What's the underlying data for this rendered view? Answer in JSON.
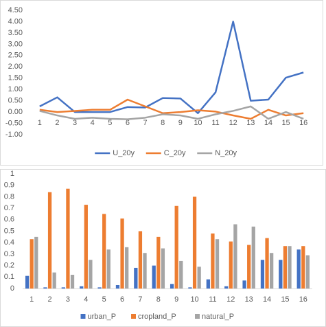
{
  "chart_data": [
    {
      "type": "line",
      "categories": [
        "1",
        "2",
        "3",
        "4",
        "5",
        "6",
        "7",
        "8",
        "9",
        "10",
        "11",
        "12",
        "13",
        "14",
        "15",
        "16"
      ],
      "series": [
        {
          "name": "U_20y",
          "color": "#4472c4",
          "values": [
            0.25,
            0.65,
            0.0,
            0.0,
            0.0,
            0.22,
            0.2,
            0.62,
            0.6,
            -0.05,
            0.87,
            4.0,
            0.5,
            0.55,
            1.52,
            1.75
          ]
        },
        {
          "name": "C_20y",
          "color": "#ed7d31",
          "values": [
            0.1,
            0.0,
            0.05,
            0.1,
            0.1,
            0.55,
            0.25,
            -0.05,
            0.0,
            0.08,
            0.02,
            -0.15,
            -0.3,
            0.1,
            -0.15,
            -0.05
          ]
        },
        {
          "name": "N_20y",
          "color": "#a5a5a5",
          "values": [
            0.05,
            -0.15,
            -0.3,
            -0.25,
            -0.3,
            -0.32,
            -0.25,
            -0.1,
            -0.15,
            -0.3,
            -0.1,
            0.05,
            0.25,
            -0.3,
            0.0,
            -0.3
          ]
        }
      ],
      "ylim": [
        -1,
        4.5
      ],
      "yticks": [
        {
          "value": 4.5,
          "label": "4.50"
        },
        {
          "value": 4,
          "label": "4.00"
        },
        {
          "value": 3.5,
          "label": "3.50"
        },
        {
          "value": 3,
          "label": "3.00"
        },
        {
          "value": 2.5,
          "label": "2.50"
        },
        {
          "value": 2,
          "label": "2.00"
        },
        {
          "value": 1.5,
          "label": "1.50"
        },
        {
          "value": 1,
          "label": "1.00"
        },
        {
          "value": 0.5,
          "label": "0.50"
        },
        {
          "value": 0,
          "label": "0.00"
        },
        {
          "value": -0.5,
          "label": "-0.50"
        },
        {
          "value": -1,
          "label": "-1.00"
        }
      ],
      "legend": "bottom"
    },
    {
      "type": "bar",
      "categories": [
        "1",
        "2",
        "3",
        "4",
        "5",
        "6",
        "7",
        "8",
        "9",
        "10",
        "11",
        "12",
        "13",
        "14",
        "15",
        "16"
      ],
      "series": [
        {
          "name": "urban_P",
          "color": "#4472c4",
          "values": [
            0.11,
            0.01,
            0.01,
            0.02,
            0.01,
            0.03,
            0.18,
            0.2,
            0.04,
            0.01,
            0.08,
            0.02,
            0.07,
            0.25,
            0.25,
            0.34
          ]
        },
        {
          "name": "cropland_P",
          "color": "#ed7d31",
          "values": [
            0.43,
            0.84,
            0.87,
            0.73,
            0.65,
            0.61,
            0.5,
            0.45,
            0.72,
            0.8,
            0.48,
            0.41,
            0.38,
            0.44,
            0.37,
            0.37
          ]
        },
        {
          "name": "natural_P",
          "color": "#a5a5a5",
          "values": [
            0.45,
            0.14,
            0.12,
            0.25,
            0.34,
            0.36,
            0.31,
            0.35,
            0.24,
            0.19,
            0.43,
            0.56,
            0.54,
            0.31,
            0.37,
            0.29
          ]
        }
      ],
      "ylim": [
        0,
        1
      ],
      "yticks": [
        0,
        0.1,
        0.2,
        0.3,
        0.4,
        0.5,
        0.6,
        0.7,
        0.8,
        0.9,
        1
      ],
      "legend": "bottom"
    }
  ]
}
